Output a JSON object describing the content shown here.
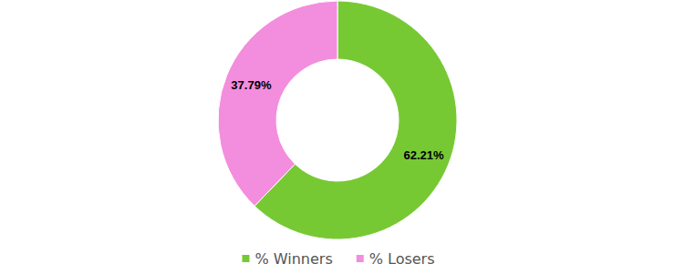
{
  "chart_data": {
    "type": "donut",
    "categories": [
      "% Winners",
      "% Losers"
    ],
    "values": [
      62.21,
      37.79
    ],
    "value_labels": [
      "62.21%",
      "37.79%"
    ],
    "colors": [
      "#77c934",
      "#f38ddd"
    ],
    "data_labels": true,
    "legend": "bottom"
  }
}
